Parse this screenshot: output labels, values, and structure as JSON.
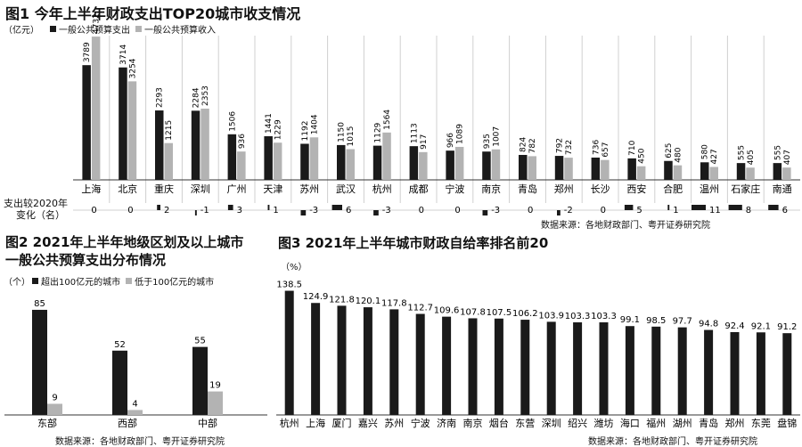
{
  "colors": {
    "expense": "#1a1a1a",
    "revenue": "#b3b3b3",
    "grid": "#d0d0d0"
  },
  "figure1": {
    "title": "图1 今年上半年财政支出TOP20城市收支情况",
    "unit": "（亿元）",
    "legend_expense": "一般公共预算支出",
    "legend_revenue": "一般公共预算收入",
    "change_label_line1": "支出较2020年",
    "change_label_line2": "变化（名）",
    "source": "数据来源：各地财政部门、粤开证券研究院"
  },
  "figure2": {
    "title_line1": "图2  2021年上半年地级区划及以上城市",
    "title_line2": "一般公共预算支出分布情况",
    "unit": "（个）",
    "legend_above": "超出100亿元的城市",
    "legend_below": "低于100亿元的城市",
    "source": "数据来源：各地财政部门、粤开证券研究院"
  },
  "figure3": {
    "title": "图3 2021年上半年城市财政自给率排名前20",
    "unit": "（%）",
    "source": "数据来源：各地财政部门、粤开证券研究院"
  },
  "chart_data": [
    {
      "type": "bar",
      "categories": [
        "上海",
        "北京",
        "重庆",
        "深圳",
        "广州",
        "天津",
        "苏州",
        "武汉",
        "杭州",
        "成都",
        "宁波",
        "南京",
        "青岛",
        "郑州",
        "长沙",
        "西安",
        "合肥",
        "温州",
        "石家庄",
        "南通"
      ],
      "series": [
        {
          "name": "一般公共预算支出",
          "values": [
            3789,
            3714,
            2293,
            2284,
            1506,
            1441,
            1192,
            1150,
            1129,
            1113,
            966,
            935,
            824,
            792,
            736,
            710,
            625,
            580,
            555,
            555
          ]
        },
        {
          "name": "一般公共预算收入",
          "values": [
            4732,
            3254,
            1215,
            2353,
            936,
            1229,
            1404,
            1015,
            1564,
            917,
            1089,
            1007,
            782,
            732,
            657,
            450,
            480,
            427,
            405,
            407
          ]
        }
      ],
      "rank_change": [
        0,
        0,
        2,
        -1,
        3,
        1,
        -3,
        6,
        -3,
        0,
        0,
        -3,
        0,
        -2,
        0,
        5,
        1,
        11,
        8,
        6
      ],
      "ylim": [
        0,
        5000
      ]
    },
    {
      "type": "bar",
      "categories": [
        "东部",
        "西部",
        "中部"
      ],
      "series": [
        {
          "name": "超出100亿元的城市",
          "values": [
            85,
            52,
            55
          ]
        },
        {
          "name": "低于100亿元的城市",
          "values": [
            9,
            4,
            19
          ]
        }
      ],
      "ylim": [
        0,
        90
      ]
    },
    {
      "type": "bar",
      "categories": [
        "杭州",
        "上海",
        "厦门",
        "嘉兴",
        "苏州",
        "宁波",
        "济南",
        "南京",
        "烟台",
        "东营",
        "深圳",
        "绍兴",
        "潍坊",
        "海口",
        "福州",
        "湖州",
        "青岛",
        "郑州",
        "东莞",
        "盘锦"
      ],
      "values": [
        138.5,
        124.9,
        121.8,
        120.1,
        117.8,
        112.7,
        109.6,
        107.8,
        107.5,
        106.2,
        103.9,
        103.3,
        103.3,
        99.1,
        98.5,
        97.7,
        94.8,
        92.4,
        92.1,
        91.2
      ],
      "ylim": [
        0,
        145
      ]
    }
  ]
}
